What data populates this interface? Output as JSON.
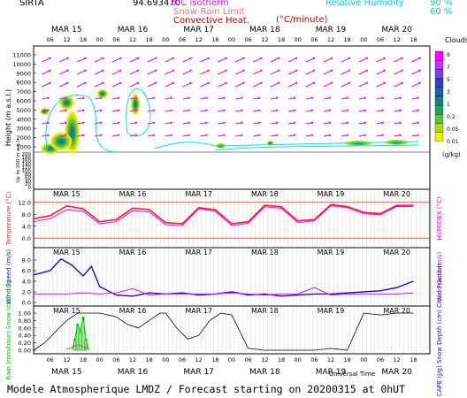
{
  "header": {
    "station": "SIRTA",
    "coords": "94.693470",
    "legend_isotherm": "0°C isotherm",
    "legend_snow_rain": "Snow-Rain Limit",
    "legend_convective": "Convective Heat.",
    "legend_convective_unit": "(°C/minute)",
    "legend_rh": "Relative Humidity",
    "rh_90": "90 %",
    "rh_60": "60 %"
  },
  "footer": {
    "title": "Modele Atmospherique LMDZ / Forecast starting on 20200315 at 0hUT",
    "universal_time": "Universal Time"
  },
  "colors": {
    "magenta": "#ff00ff",
    "cyan": "#00e5e5",
    "red": "#ff2020",
    "blue": "#1010d0",
    "green": "#00c000",
    "black": "#000000"
  },
  "chart_data": [
    {
      "type": "heatmap",
      "title": "",
      "ylabel": "Height (m a.s.l.)",
      "ylabel_low": "Up to 200 m a.g.l.",
      "colorbar_title": "Clouds",
      "colorbar_unit": "(g/kg)",
      "colorbar_ticks": [
        "9",
        "7",
        "5",
        "3",
        "1",
        "0.2",
        "0.05",
        "0.01"
      ],
      "colorbar_colors": [
        "#ff00ff",
        "#c030ff",
        "#7a40e0",
        "#3040c0",
        "#1e60a0",
        "#188080",
        "#30a060",
        "#60c040",
        "#a8d820",
        "#f0f000"
      ],
      "y_ticks_upper": [
        "11000",
        "10000",
        "9000",
        "8000",
        "7000",
        "6000",
        "5000",
        "4000",
        "3000",
        "2000",
        "1000"
      ],
      "y_ticks_lower": [
        "200",
        "180",
        "160",
        "140",
        "120",
        "100",
        "80",
        "60",
        "40",
        "20",
        "0"
      ],
      "day_labels": [
        "MAR 15",
        "MAR 16",
        "MAR 17",
        "MAR 18",
        "MAR 19",
        "MAR 20"
      ],
      "hour_labels": [
        "06",
        "12",
        "18",
        "00",
        "06",
        "12",
        "18",
        "00",
        "06",
        "12",
        "18",
        "00",
        "06",
        "12",
        "18",
        "00",
        "06",
        "12",
        "18",
        "00",
        "06",
        "12",
        "18"
      ]
    },
    {
      "type": "line",
      "ylabel": "Temperature (°C)",
      "ylabel_right": "HUMIDEX (°C)",
      "y_ticks": [
        "12.0",
        "8.0",
        "4.0",
        "0.0"
      ],
      "ylim": [
        -2,
        14
      ],
      "series": [
        {
          "name": "Temperature",
          "x": [
            0,
            6,
            12,
            18,
            24,
            30,
            36,
            42,
            48,
            54,
            60,
            66,
            72,
            78,
            84,
            90,
            96,
            102,
            108,
            114,
            120,
            126,
            132,
            138
          ],
          "values": [
            6.5,
            7.5,
            10.8,
            9.8,
            5.5,
            6.2,
            10.0,
            9.6,
            5.2,
            4.8,
            10.2,
            9.5,
            4.8,
            5.5,
            11.0,
            10.5,
            5.8,
            6.2,
            11.2,
            10.6,
            8.6,
            8.2,
            11.0,
            11.0
          ]
        },
        {
          "name": "HUMIDEX",
          "x": [
            0,
            6,
            12,
            18,
            24,
            30,
            36,
            42,
            48,
            54,
            60,
            66,
            72,
            78,
            84,
            90,
            96,
            102,
            108,
            114,
            120,
            126,
            132,
            138
          ],
          "values": [
            5.5,
            6.5,
            9.5,
            9.0,
            4.8,
            5.5,
            9.2,
            8.8,
            4.5,
            4.2,
            9.8,
            9.0,
            4.2,
            5.0,
            10.5,
            10.0,
            5.2,
            5.8,
            10.8,
            10.2,
            8.2,
            7.8,
            10.6,
            10.6
          ]
        }
      ]
    },
    {
      "type": "line",
      "ylabel": "Wind Speed (m/s)",
      "ylabel_right": "Wind Gust (m/s)",
      "y_ticks": [
        "8.0",
        "6.0",
        "4.0",
        "2.0",
        "0.0"
      ],
      "ylim": [
        0,
        9
      ],
      "series": [
        {
          "name": "Wind Speed",
          "x": [
            0,
            6,
            10,
            14,
            18,
            21,
            24,
            30,
            36,
            42,
            48,
            54,
            60,
            66,
            72,
            78,
            84,
            90,
            96,
            102,
            108,
            114,
            120,
            126,
            132,
            138
          ],
          "values": [
            5.2,
            6.0,
            8.2,
            7.0,
            5.0,
            6.8,
            3.0,
            1.4,
            1.2,
            1.8,
            1.6,
            1.8,
            1.4,
            1.6,
            2.0,
            1.4,
            1.6,
            1.2,
            1.4,
            1.6,
            1.6,
            1.8,
            2.0,
            2.2,
            2.8,
            4.0
          ]
        },
        {
          "name": "Wind Gust",
          "x": [
            0,
            6,
            12,
            18,
            24,
            30,
            36,
            42,
            48,
            54,
            60,
            66,
            72,
            78,
            84,
            90,
            96,
            102,
            108,
            114,
            120,
            126,
            132,
            138
          ],
          "values": [
            1.6,
            1.6,
            1.6,
            1.8,
            1.6,
            1.8,
            2.6,
            1.4,
            1.6,
            1.6,
            1.6,
            1.6,
            1.8,
            1.6,
            1.4,
            1.6,
            1.6,
            2.8,
            1.4,
            1.6,
            1.6,
            1.6,
            1.6,
            1.8
          ]
        }
      ]
    },
    {
      "type": "line",
      "ylabel": "Rain (mm/hour) Snow (cm/hour)",
      "ylabel_right": "CAPE (J/g) Snow Depth (cm) Cloud Fraction",
      "y_ticks": [
        "1.00",
        "0.80",
        "0.60",
        "0.40",
        "0.20",
        "0.00"
      ],
      "ylim": [
        0,
        1
      ],
      "series": [
        {
          "name": "Cloud Fraction",
          "x": [
            0,
            4,
            8,
            12,
            16,
            20,
            24,
            30,
            34,
            38,
            42,
            46,
            48,
            52,
            56,
            60,
            64,
            68,
            72,
            78,
            84,
            90,
            96,
            102,
            108,
            114,
            120,
            126,
            132,
            138
          ],
          "values": [
            0.0,
            0.2,
            0.5,
            0.8,
            1.0,
            1.0,
            1.0,
            0.9,
            0.7,
            0.6,
            0.8,
            1.0,
            1.0,
            0.6,
            0.3,
            0.4,
            0.8,
            1.0,
            0.95,
            0.05,
            0.0,
            0.0,
            0.0,
            0.0,
            0.05,
            0.0,
            1.0,
            0.95,
            1.0,
            1.0
          ]
        },
        {
          "name": "Rain",
          "x": [
            14,
            15,
            16,
            17,
            18,
            19,
            20
          ],
          "values": [
            0.0,
            0.3,
            0.7,
            0.5,
            0.9,
            0.3,
            0.0
          ]
        }
      ]
    }
  ]
}
